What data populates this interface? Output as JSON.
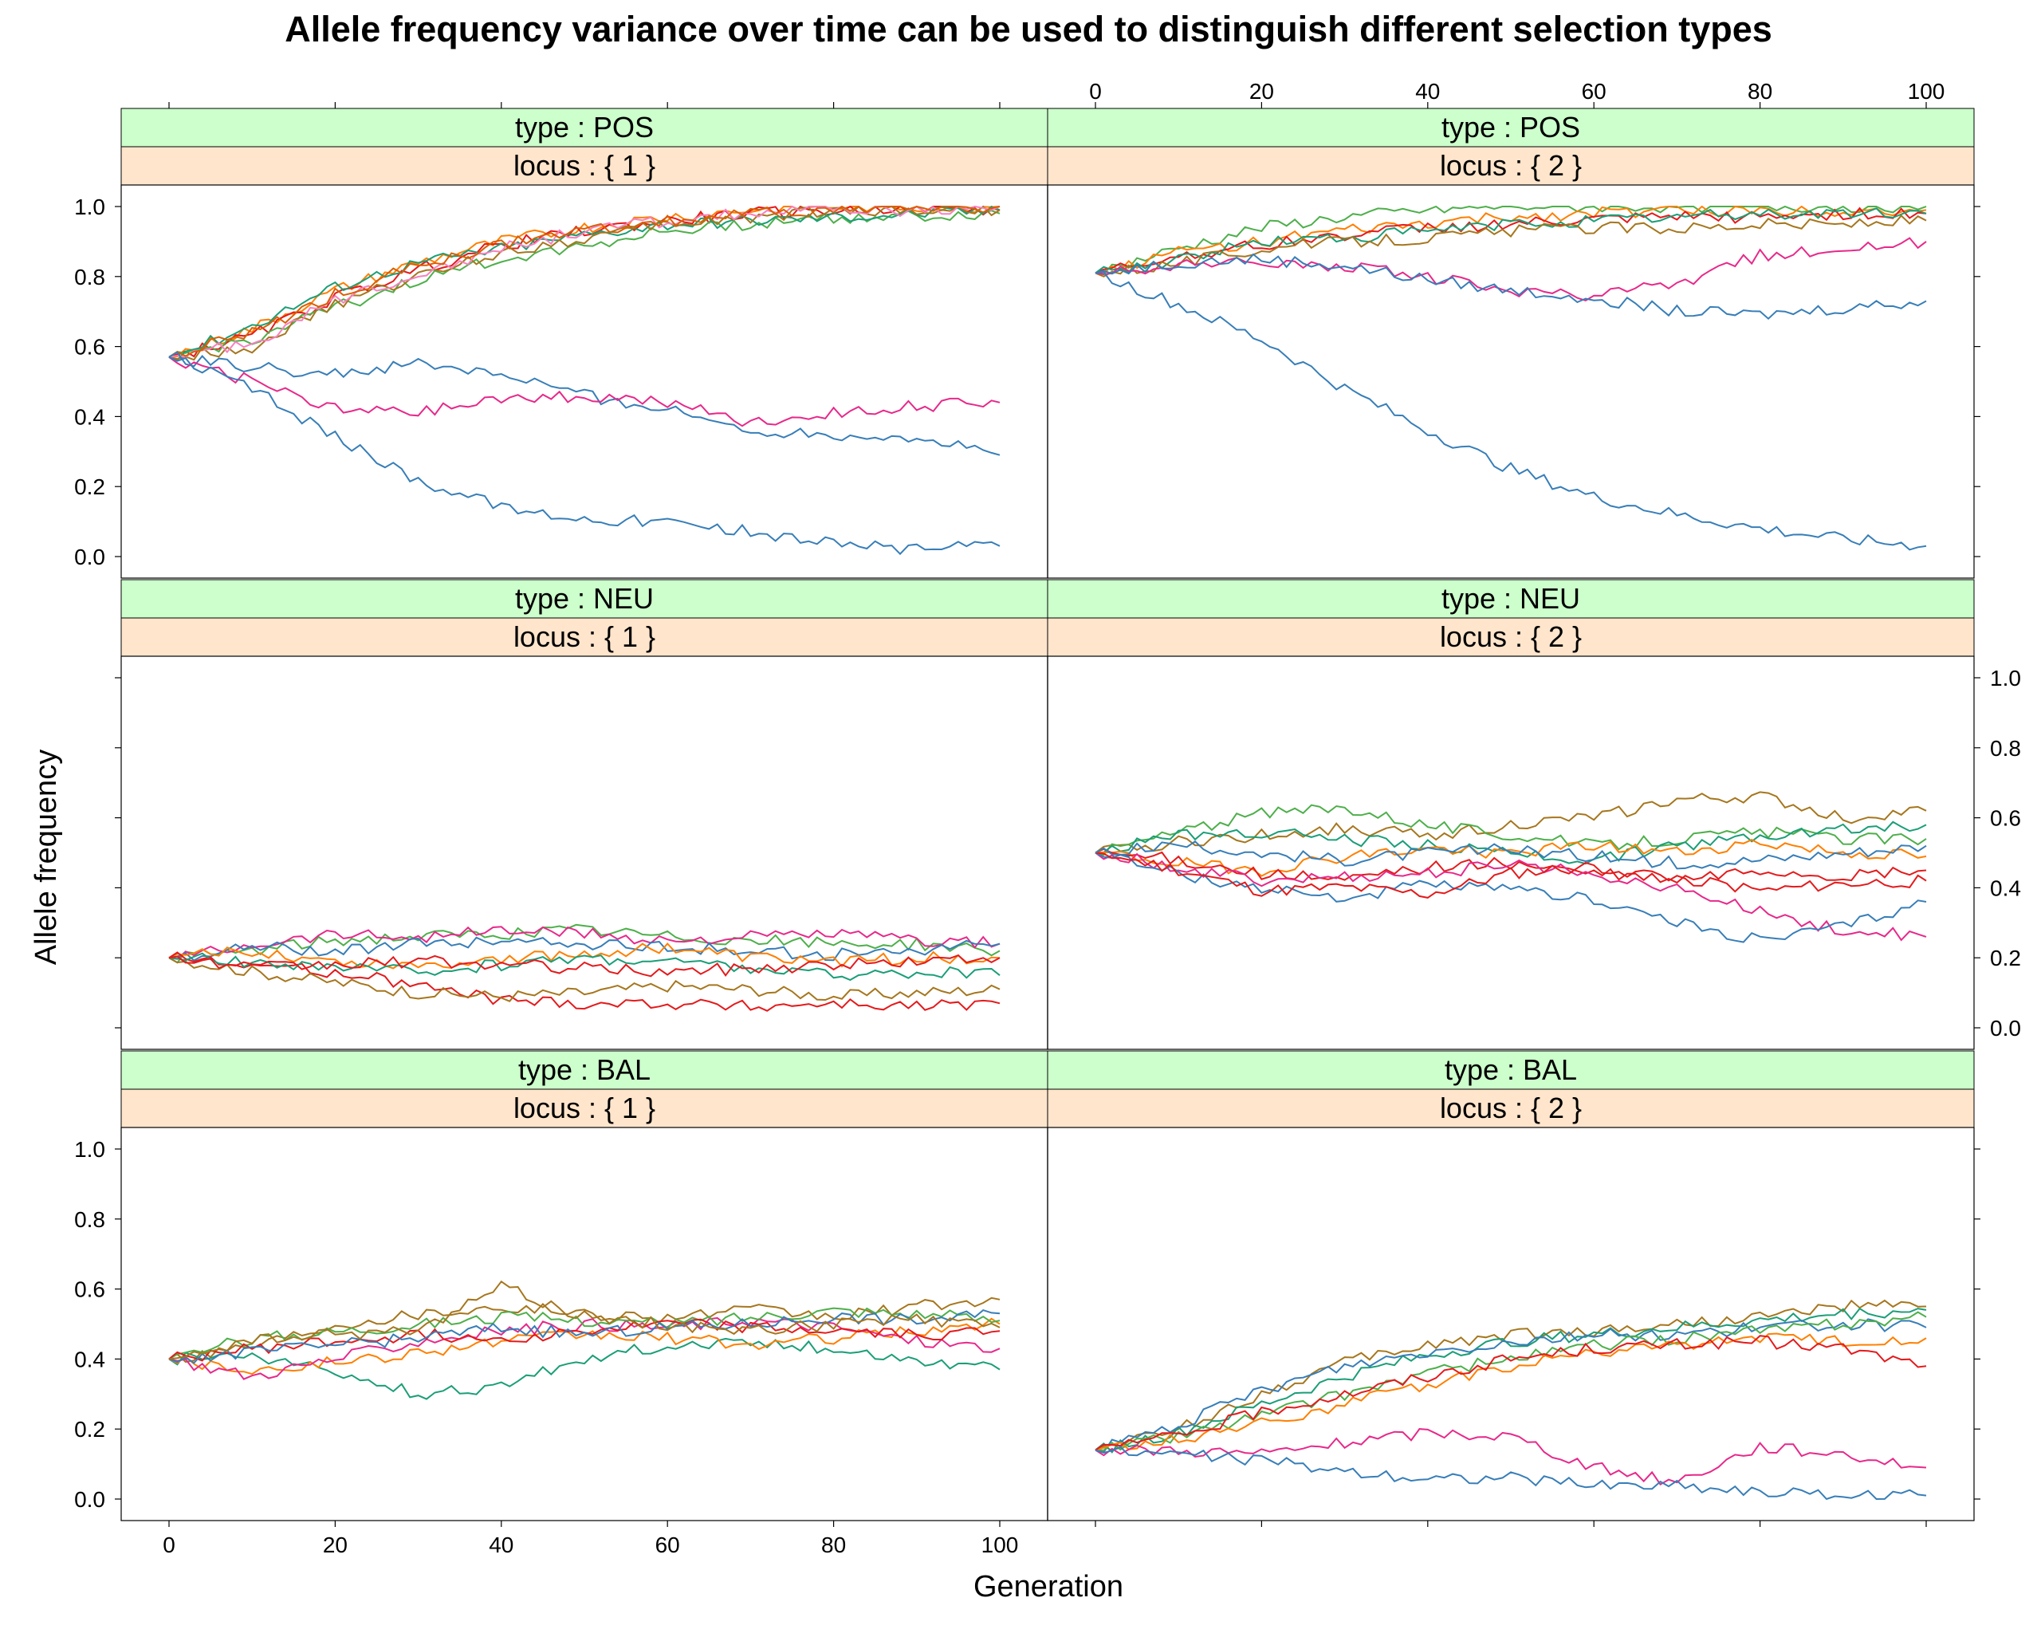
{
  "chart_data": {
    "type": "line",
    "title": "Allele frequency variance over time can be used to distinguish different selection types",
    "xlabel": "Generation",
    "ylabel": "Allele frequency",
    "xlim": [
      0,
      100
    ],
    "ylim": [
      0,
      1
    ],
    "x_ticks": [
      0,
      20,
      40,
      60,
      80,
      100
    ],
    "y_ticks": [
      0,
      0.2,
      0.4,
      0.6,
      0.8,
      1
    ],
    "x_tick_labels": [
      "0",
      "20",
      "40",
      "60",
      "80",
      "100"
    ],
    "y_tick_labels": [
      "0.0",
      "0.2",
      "0.4",
      "0.6",
      "0.8",
      "1.0"
    ],
    "strip_prefix_type": "type : ",
    "strip_prefix_locus": "locus : ",
    "colors": [
      "#66C2A5",
      "#FF7F00",
      "#E7298A",
      "#1B9E77",
      "#A6761D",
      "#E41A1C",
      "#4DAF4A",
      "#377EB8",
      "#F781BF",
      "#D95F02"
    ],
    "panels": [
      {
        "type": "POS",
        "locus": "{ 1 }",
        "row": 0,
        "col": 0,
        "x": [
          0,
          10,
          20,
          30,
          40,
          50,
          60,
          70,
          80,
          90,
          100
        ],
        "series": [
          {
            "color": "#FF7F00",
            "values": [
              0.57,
              0.65,
              0.76,
              0.84,
              0.9,
              0.94,
              0.97,
              0.99,
              1.0,
              1.0,
              1.0
            ]
          },
          {
            "color": "#E41A1C",
            "values": [
              0.57,
              0.63,
              0.74,
              0.82,
              0.89,
              0.93,
              0.96,
              0.98,
              0.99,
              1.0,
              0.99
            ]
          },
          {
            "color": "#4DAF4A",
            "values": [
              0.57,
              0.62,
              0.71,
              0.79,
              0.85,
              0.89,
              0.93,
              0.95,
              0.97,
              0.97,
              0.98
            ]
          },
          {
            "color": "#1B9E77",
            "values": [
              0.57,
              0.66,
              0.77,
              0.84,
              0.88,
              0.92,
              0.95,
              0.96,
              0.97,
              0.98,
              0.99
            ]
          },
          {
            "color": "#A6761D",
            "values": [
              0.57,
              0.6,
              0.72,
              0.8,
              0.87,
              0.91,
              0.95,
              0.97,
              0.99,
              0.99,
              0.99
            ]
          },
          {
            "color": "#F781BF",
            "values": [
              0.57,
              0.61,
              0.73,
              0.81,
              0.88,
              0.93,
              0.96,
              0.98,
              0.99,
              0.99,
              1.0
            ]
          },
          {
            "color": "#D95F02",
            "values": [
              0.57,
              0.64,
              0.75,
              0.83,
              0.89,
              0.93,
              0.96,
              0.98,
              0.99,
              1.0,
              1.0
            ]
          },
          {
            "color": "#377EB8",
            "values": [
              0.57,
              0.54,
              0.52,
              0.55,
              0.52,
              0.46,
              0.42,
              0.36,
              0.35,
              0.34,
              0.29
            ]
          },
          {
            "color": "#E7298A",
            "values": [
              0.57,
              0.5,
              0.42,
              0.41,
              0.45,
              0.46,
              0.44,
              0.38,
              0.41,
              0.43,
              0.44
            ]
          },
          {
            "color": "#377EB8",
            "values": [
              0.57,
              0.48,
              0.34,
              0.22,
              0.14,
              0.11,
              0.1,
              0.07,
              0.04,
              0.02,
              0.03
            ]
          }
        ]
      },
      {
        "type": "POS",
        "locus": "{ 2 }",
        "row": 0,
        "col": 1,
        "x": [
          0,
          10,
          20,
          30,
          40,
          50,
          60,
          70,
          80,
          90,
          100
        ],
        "series": [
          {
            "color": "#4DAF4A",
            "values": [
              0.81,
              0.88,
              0.94,
              0.97,
              0.99,
              1.0,
              1.0,
              1.0,
              1.0,
              1.0,
              1.0
            ]
          },
          {
            "color": "#FF7F00",
            "values": [
              0.81,
              0.87,
              0.9,
              0.93,
              0.95,
              0.97,
              0.98,
              0.99,
              0.99,
              0.99,
              0.99
            ]
          },
          {
            "color": "#E41A1C",
            "values": [
              0.81,
              0.86,
              0.89,
              0.92,
              0.94,
              0.95,
              0.96,
              0.97,
              0.97,
              0.98,
              0.98
            ]
          },
          {
            "color": "#1B9E77",
            "values": [
              0.81,
              0.85,
              0.9,
              0.91,
              0.93,
              0.95,
              0.96,
              0.97,
              0.98,
              0.98,
              0.98
            ]
          },
          {
            "color": "#A6761D",
            "values": [
              0.81,
              0.84,
              0.88,
              0.9,
              0.91,
              0.93,
              0.94,
              0.94,
              0.95,
              0.95,
              0.96
            ]
          },
          {
            "color": "#E7298A",
            "values": [
              0.81,
              0.83,
              0.84,
              0.83,
              0.8,
              0.76,
              0.74,
              0.78,
              0.86,
              0.88,
              0.9
            ]
          },
          {
            "color": "#377EB8",
            "values": [
              0.81,
              0.84,
              0.85,
              0.83,
              0.79,
              0.76,
              0.74,
              0.7,
              0.69,
              0.71,
              0.73
            ]
          },
          {
            "color": "#377EB8",
            "values": [
              0.81,
              0.72,
              0.62,
              0.48,
              0.36,
              0.25,
              0.17,
              0.12,
              0.08,
              0.05,
              0.03
            ]
          }
        ]
      },
      {
        "type": "NEU",
        "locus": "{ 1 }",
        "row": 1,
        "col": 0,
        "x": [
          0,
          10,
          20,
          30,
          40,
          50,
          60,
          70,
          80,
          90,
          100
        ],
        "series": [
          {
            "color": "#4DAF4A",
            "values": [
              0.2,
              0.22,
              0.25,
              0.26,
              0.27,
              0.28,
              0.26,
              0.25,
              0.24,
              0.24,
              0.22
            ]
          },
          {
            "color": "#E7298A",
            "values": [
              0.2,
              0.24,
              0.27,
              0.26,
              0.28,
              0.27,
              0.25,
              0.26,
              0.27,
              0.25,
              0.24
            ]
          },
          {
            "color": "#377EB8",
            "values": [
              0.2,
              0.23,
              0.22,
              0.24,
              0.25,
              0.24,
              0.23,
              0.22,
              0.21,
              0.22,
              0.24
            ]
          },
          {
            "color": "#FF7F00",
            "values": [
              0.2,
              0.22,
              0.19,
              0.18,
              0.2,
              0.21,
              0.23,
              0.2,
              0.19,
              0.2,
              0.2
            ]
          },
          {
            "color": "#E41A1C",
            "values": [
              0.2,
              0.18,
              0.16,
              0.12,
              0.08,
              0.07,
              0.07,
              0.06,
              0.07,
              0.06,
              0.07
            ]
          },
          {
            "color": "#A6761D",
            "values": [
              0.2,
              0.16,
              0.13,
              0.1,
              0.09,
              0.1,
              0.12,
              0.11,
              0.09,
              0.1,
              0.11
            ]
          },
          {
            "color": "#1B9E77",
            "values": [
              0.2,
              0.19,
              0.17,
              0.16,
              0.18,
              0.2,
              0.19,
              0.17,
              0.15,
              0.16,
              0.15
            ]
          },
          {
            "color": "#E41A1C",
            "values": [
              0.2,
              0.17,
              0.18,
              0.19,
              0.18,
              0.17,
              0.16,
              0.17,
              0.18,
              0.19,
              0.2
            ]
          }
        ]
      },
      {
        "type": "NEU",
        "locus": "{ 2 }",
        "row": 1,
        "col": 1,
        "x": [
          0,
          10,
          20,
          30,
          40,
          50,
          60,
          70,
          80,
          90,
          100
        ],
        "series": [
          {
            "color": "#A6761D",
            "values": [
              0.5,
              0.53,
              0.55,
              0.57,
              0.55,
              0.58,
              0.6,
              0.65,
              0.66,
              0.6,
              0.62
            ]
          },
          {
            "color": "#4DAF4A",
            "values": [
              0.5,
              0.56,
              0.61,
              0.63,
              0.58,
              0.55,
              0.52,
              0.54,
              0.56,
              0.54,
              0.54
            ]
          },
          {
            "color": "#1B9E77",
            "values": [
              0.5,
              0.55,
              0.56,
              0.54,
              0.52,
              0.5,
              0.48,
              0.52,
              0.55,
              0.57,
              0.58
            ]
          },
          {
            "color": "#FF7F00",
            "values": [
              0.5,
              0.47,
              0.45,
              0.49,
              0.51,
              0.5,
              0.52,
              0.5,
              0.53,
              0.5,
              0.49
            ]
          },
          {
            "color": "#E41A1C",
            "values": [
              0.5,
              0.48,
              0.44,
              0.42,
              0.46,
              0.47,
              0.44,
              0.42,
              0.45,
              0.43,
              0.45
            ]
          },
          {
            "color": "#E7298A",
            "values": [
              0.5,
              0.46,
              0.42,
              0.43,
              0.44,
              0.47,
              0.44,
              0.4,
              0.33,
              0.28,
              0.26
            ]
          },
          {
            "color": "#377EB8",
            "values": [
              0.5,
              0.44,
              0.4,
              0.37,
              0.41,
              0.39,
              0.37,
              0.3,
              0.25,
              0.29,
              0.36
            ]
          },
          {
            "color": "#E41A1C",
            "values": [
              0.5,
              0.45,
              0.39,
              0.4,
              0.38,
              0.44,
              0.46,
              0.43,
              0.39,
              0.41,
              0.42
            ]
          },
          {
            "color": "#377EB8",
            "values": [
              0.5,
              0.52,
              0.5,
              0.48,
              0.5,
              0.51,
              0.49,
              0.47,
              0.48,
              0.5,
              0.52
            ]
          }
        ]
      },
      {
        "type": "BAL",
        "locus": "{ 1 }",
        "row": 2,
        "col": 0,
        "x": [
          0,
          10,
          20,
          30,
          40,
          50,
          60,
          70,
          80,
          90,
          100
        ],
        "series": [
          {
            "color": "#A6761D",
            "values": [
              0.4,
              0.44,
              0.5,
              0.53,
              0.55,
              0.53,
              0.52,
              0.54,
              0.52,
              0.55,
              0.57
            ]
          },
          {
            "color": "#1B9E77",
            "values": [
              0.4,
              0.41,
              0.36,
              0.3,
              0.32,
              0.4,
              0.44,
              0.45,
              0.43,
              0.4,
              0.37
            ]
          },
          {
            "color": "#FF7F00",
            "values": [
              0.4,
              0.37,
              0.39,
              0.42,
              0.45,
              0.47,
              0.46,
              0.44,
              0.46,
              0.48,
              0.5
            ]
          },
          {
            "color": "#E7298A",
            "values": [
              0.4,
              0.35,
              0.4,
              0.45,
              0.48,
              0.5,
              0.49,
              0.51,
              0.49,
              0.45,
              0.43
            ]
          },
          {
            "color": "#4DAF4A",
            "values": [
              0.4,
              0.46,
              0.48,
              0.5,
              0.52,
              0.51,
              0.5,
              0.52,
              0.54,
              0.53,
              0.51
            ]
          },
          {
            "color": "#E41A1C",
            "values": [
              0.4,
              0.43,
              0.45,
              0.47,
              0.46,
              0.48,
              0.5,
              0.49,
              0.48,
              0.47,
              0.48
            ]
          },
          {
            "color": "#377EB8",
            "values": [
              0.4,
              0.42,
              0.44,
              0.46,
              0.49,
              0.47,
              0.49,
              0.5,
              0.52,
              0.51,
              0.53
            ]
          },
          {
            "color": "#A6761D",
            "values": [
              0.4,
              0.45,
              0.47,
              0.48,
              0.61,
              0.52,
              0.5,
              0.48,
              0.5,
              0.51,
              0.49
            ]
          }
        ]
      },
      {
        "type": "BAL",
        "locus": "{ 2 }",
        "row": 2,
        "col": 1,
        "x": [
          0,
          10,
          20,
          30,
          40,
          50,
          60,
          70,
          80,
          90,
          100
        ],
        "series": [
          {
            "color": "#A6761D",
            "values": [
              0.14,
              0.2,
              0.3,
              0.39,
              0.44,
              0.47,
              0.48,
              0.5,
              0.52,
              0.55,
              0.55
            ]
          },
          {
            "color": "#1B9E77",
            "values": [
              0.14,
              0.19,
              0.27,
              0.35,
              0.41,
              0.45,
              0.47,
              0.49,
              0.51,
              0.53,
              0.54
            ]
          },
          {
            "color": "#377EB8",
            "values": [
              0.14,
              0.21,
              0.31,
              0.38,
              0.42,
              0.45,
              0.47,
              0.47,
              0.49,
              0.5,
              0.49
            ]
          },
          {
            "color": "#4DAF4A",
            "values": [
              0.14,
              0.18,
              0.24,
              0.3,
              0.36,
              0.4,
              0.44,
              0.46,
              0.48,
              0.5,
              0.52
            ]
          },
          {
            "color": "#FF7F00",
            "values": [
              0.14,
              0.17,
              0.22,
              0.27,
              0.33,
              0.38,
              0.42,
              0.44,
              0.46,
              0.45,
              0.46
            ]
          },
          {
            "color": "#E41A1C",
            "values": [
              0.14,
              0.18,
              0.25,
              0.3,
              0.35,
              0.4,
              0.43,
              0.44,
              0.45,
              0.43,
              0.38
            ]
          },
          {
            "color": "#E7298A",
            "values": [
              0.14,
              0.14,
              0.13,
              0.16,
              0.19,
              0.18,
              0.09,
              0.05,
              0.15,
              0.13,
              0.09
            ]
          },
          {
            "color": "#377EB8",
            "values": [
              0.14,
              0.13,
              0.11,
              0.08,
              0.06,
              0.06,
              0.04,
              0.04,
              0.02,
              0.01,
              0.01
            ]
          }
        ]
      }
    ]
  }
}
